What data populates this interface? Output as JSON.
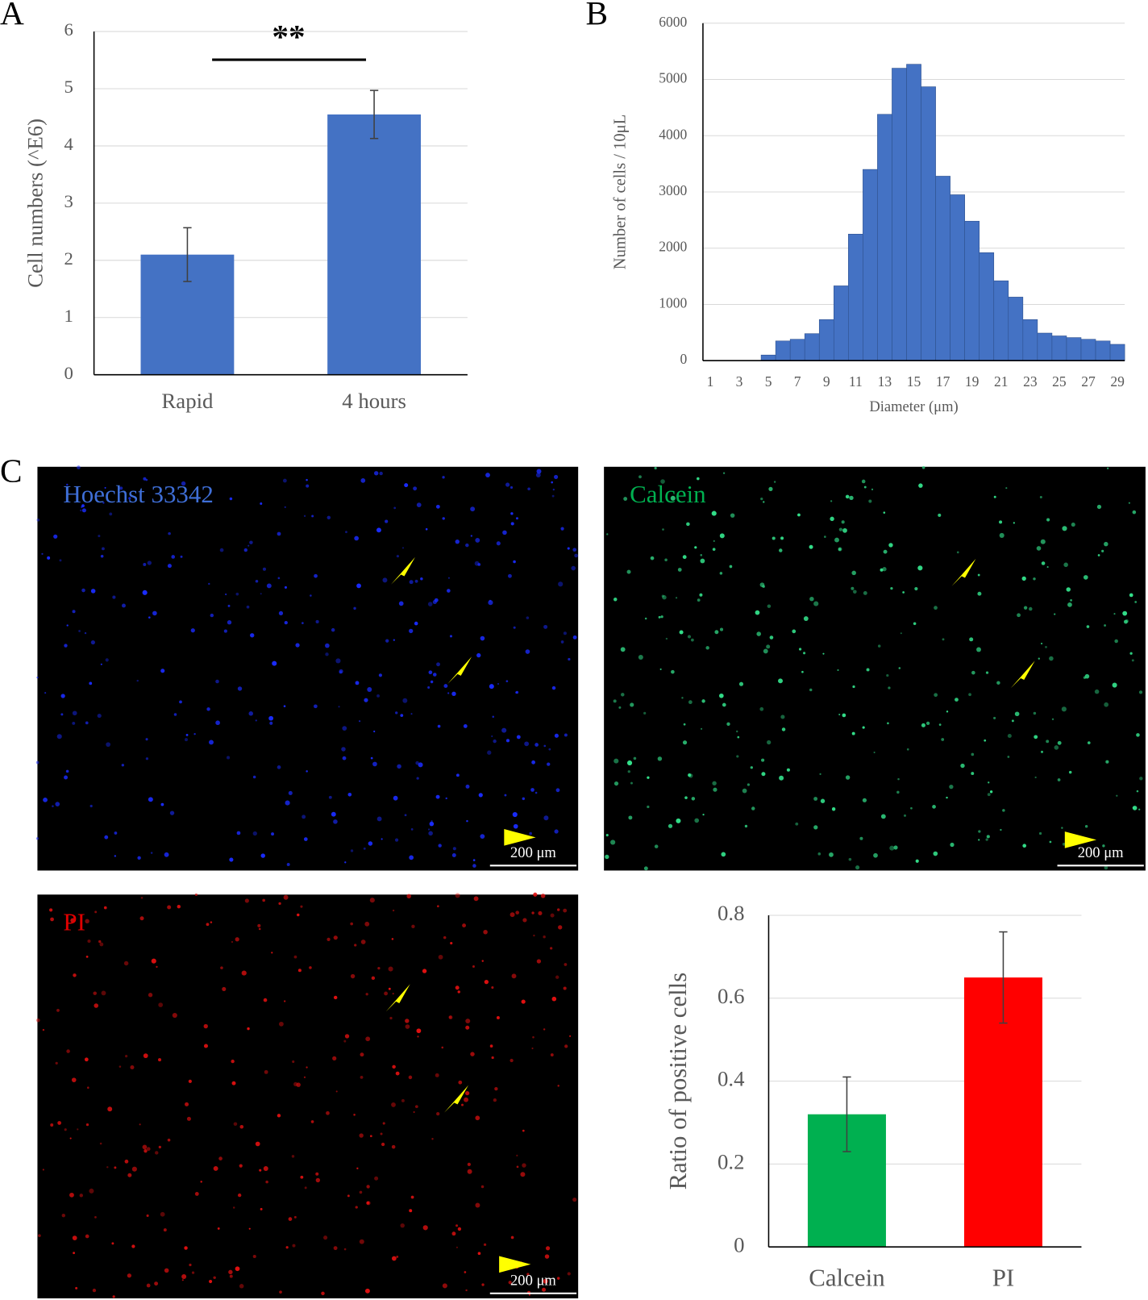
{
  "panels": {
    "a": "A",
    "b": "B",
    "c": "C"
  },
  "images": [
    {
      "label": "Hoechst 33342",
      "scale": "200 μm"
    },
    {
      "label": "Calcein",
      "scale": "200 μm"
    },
    {
      "label": "PI",
      "scale": "200 μm"
    }
  ],
  "chart_data": [
    {
      "type": "bar",
      "ylabel": "Cell numbers (^E6)",
      "annotation": "**",
      "categories": [
        "Rapid",
        "4 hours"
      ],
      "values": [
        2.1,
        4.55
      ],
      "errors": [
        0.47,
        0.42
      ],
      "color": "#4472c4",
      "ylim": [
        0,
        6
      ],
      "yticks": [
        0,
        1,
        2,
        3,
        4,
        5,
        6
      ],
      "grid": true
    },
    {
      "type": "histogram",
      "ylabel": "Number of cells / 10μL",
      "xlabel": "Diameter (μm)",
      "categories": [
        "1",
        null,
        "3",
        null,
        "5",
        null,
        "7",
        null,
        "9",
        null,
        "11",
        null,
        "13",
        null,
        "15",
        null,
        "17",
        null,
        "19",
        null,
        "21",
        null,
        "23",
        null,
        "25",
        null,
        "27",
        null,
        "29"
      ],
      "values": [
        0,
        0,
        0,
        0,
        100,
        350,
        380,
        480,
        730,
        1330,
        2250,
        3400,
        4380,
        5200,
        5270,
        4870,
        3280,
        2950,
        2480,
        1920,
        1420,
        1130,
        730,
        490,
        440,
        410,
        380,
        350,
        290
      ],
      "color": "#4472c4",
      "ylim": [
        0,
        6000
      ],
      "yticks": [
        0,
        1000,
        2000,
        3000,
        4000,
        5000,
        6000
      ],
      "grid": true
    },
    {
      "type": "bar",
      "ylabel": "Ratio of positive cells",
      "categories": [
        "Calcein",
        "PI"
      ],
      "values": [
        0.32,
        0.65
      ],
      "errors": [
        0.09,
        0.11
      ],
      "colors": [
        "#00b050",
        "#ff0000"
      ],
      "ylim": [
        0,
        0.8
      ],
      "yticks": [
        0,
        0.2,
        0.4,
        0.6,
        0.8
      ],
      "grid": true
    }
  ]
}
